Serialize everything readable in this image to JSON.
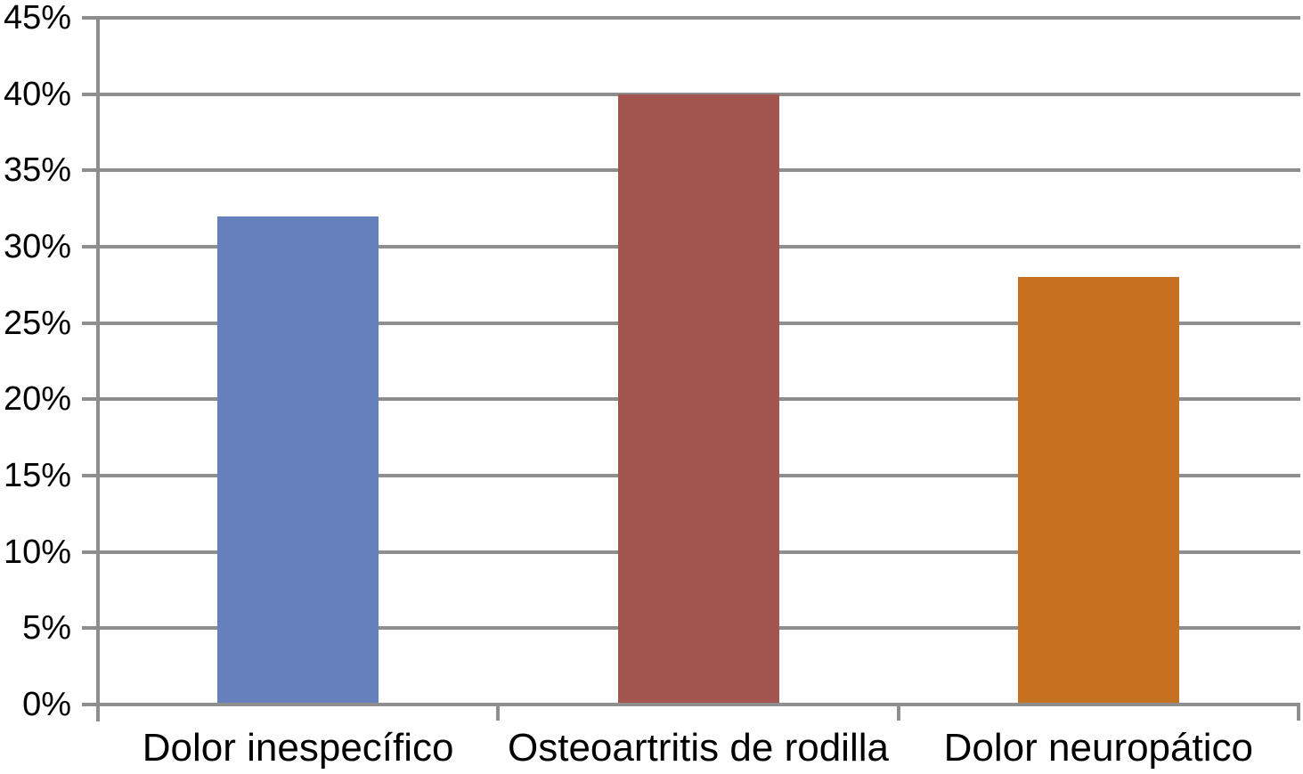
{
  "chart_data": {
    "type": "bar",
    "categories": [
      "Dolor inespecífico",
      "Osteoartritis de rodilla",
      "Dolor neuropático"
    ],
    "values": [
      32,
      40,
      28
    ],
    "unit": "%",
    "series": [
      {
        "name": "Dolor inespecífico",
        "value": 32,
        "color": "#6580BB"
      },
      {
        "name": "Osteoartritis de rodilla",
        "value": 40,
        "color": "#A35550"
      },
      {
        "name": "Dolor neuropático",
        "value": 28,
        "color": "#C57120"
      }
    ],
    "bar_colors": [
      "#6580BB",
      "#A35550",
      "#C57120"
    ],
    "ylim": [
      0,
      45
    ],
    "ytick_step": 5,
    "ytick_values": [
      0,
      5,
      10,
      15,
      20,
      25,
      30,
      35,
      40,
      45
    ],
    "ytick_labels": [
      "0%",
      "5%",
      "10%",
      "15%",
      "20%",
      "25%",
      "30%",
      "35%",
      "40%",
      "45%"
    ],
    "grid": true,
    "legend_position": "none",
    "gridline_color": "#8E8E8E",
    "axis_color": "#8E8E8E",
    "label_color": "#000000",
    "background_color": "#FFFFFF"
  }
}
